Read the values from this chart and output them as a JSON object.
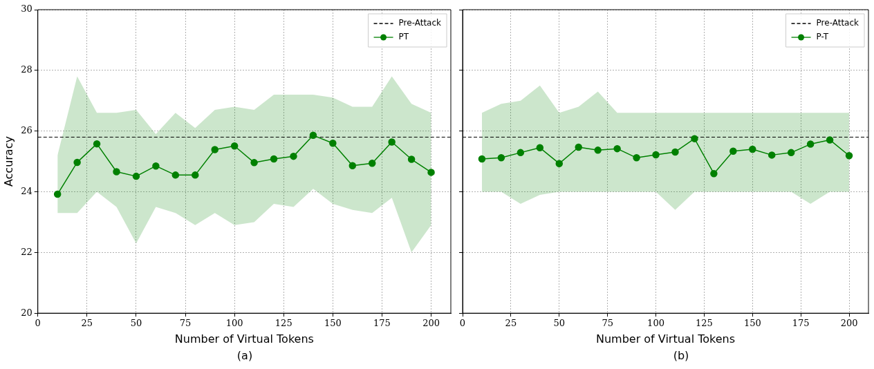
{
  "chart_data": [
    {
      "type": "line",
      "xlabel": "Number of Virtual Tokens",
      "ylabel": "Accuracy",
      "annotations": [
        "(a)"
      ],
      "x": [
        10,
        20,
        30,
        40,
        50,
        60,
        70,
        80,
        90,
        100,
        110,
        120,
        130,
        140,
        150,
        160,
        170,
        180,
        190,
        200
      ],
      "series": [
        {
          "name": "PT",
          "color": "#008000",
          "values": [
            23.92,
            24.97,
            25.58,
            24.66,
            24.51,
            24.85,
            24.55,
            24.55,
            25.39,
            25.51,
            24.96,
            25.08,
            25.17,
            25.86,
            25.6,
            24.86,
            24.94,
            25.64,
            25.07,
            24.64
          ],
          "lower": [
            23.3,
            23.3,
            24.0,
            23.5,
            22.3,
            23.5,
            23.3,
            22.9,
            23.3,
            22.9,
            23.0,
            23.6,
            23.5,
            24.1,
            23.6,
            23.4,
            23.3,
            23.8,
            22.0,
            22.9
          ],
          "upper": [
            25.2,
            27.8,
            26.6,
            26.6,
            26.7,
            25.9,
            26.6,
            26.1,
            26.7,
            26.8,
            26.7,
            27.2,
            27.2,
            27.2,
            27.1,
            26.8,
            26.8,
            27.8,
            26.9,
            26.6
          ]
        }
      ],
      "ref_lines": [
        {
          "axis": "y",
          "value": 25.8,
          "label": "Pre-Attack",
          "color": "#000000",
          "line_style": "dashed"
        }
      ],
      "xlim": [
        0,
        210
      ],
      "xticks": [
        0,
        25,
        50,
        75,
        100,
        125,
        150,
        175,
        200
      ],
      "ylim": [
        20,
        30
      ],
      "yticks": [
        20,
        22,
        24,
        26,
        28,
        30
      ],
      "grid": true,
      "legend": "top right",
      "marker": "circle",
      "line_style": "solid"
    },
    {
      "type": "line",
      "xlabel": "Number of Virtual Tokens",
      "annotations": [
        "(b)"
      ],
      "x": [
        10,
        20,
        30,
        40,
        50,
        60,
        70,
        80,
        90,
        100,
        110,
        120,
        130,
        140,
        150,
        160,
        170,
        180,
        190,
        200
      ],
      "series": [
        {
          "name": "P-T",
          "color": "#008000",
          "values": [
            25.08,
            25.12,
            25.29,
            25.45,
            24.93,
            25.47,
            25.37,
            25.42,
            25.12,
            25.22,
            25.31,
            25.75,
            24.6,
            25.34,
            25.4,
            25.21,
            25.29,
            25.57,
            25.71,
            25.19
          ],
          "lower": [
            24.0,
            24.0,
            23.6,
            23.9,
            24.0,
            24.0,
            24.0,
            24.0,
            24.0,
            24.0,
            23.4,
            24.0,
            24.0,
            24.0,
            24.0,
            24.0,
            24.0,
            23.6,
            24.0,
            24.0
          ],
          "upper": [
            26.6,
            26.9,
            27.0,
            27.5,
            26.6,
            26.8,
            27.3,
            26.6,
            26.6,
            26.6,
            26.6,
            26.6,
            26.6,
            26.6,
            26.6,
            26.6,
            26.6,
            26.6,
            26.6,
            26.6
          ]
        }
      ],
      "ref_lines": [
        {
          "axis": "y",
          "value": 25.8,
          "label": "Pre-Attack",
          "color": "#000000",
          "line_style": "dashed"
        }
      ],
      "xlim": [
        0,
        210
      ],
      "xticks": [
        0,
        25,
        50,
        75,
        100,
        125,
        150,
        175,
        200
      ],
      "ylim": [
        20,
        30
      ],
      "yticks": [
        20,
        22,
        24,
        26,
        28,
        30
      ],
      "tick_labels": "x",
      "grid": true,
      "legend": "top right",
      "marker": "circle",
      "line_style": "solid"
    }
  ]
}
